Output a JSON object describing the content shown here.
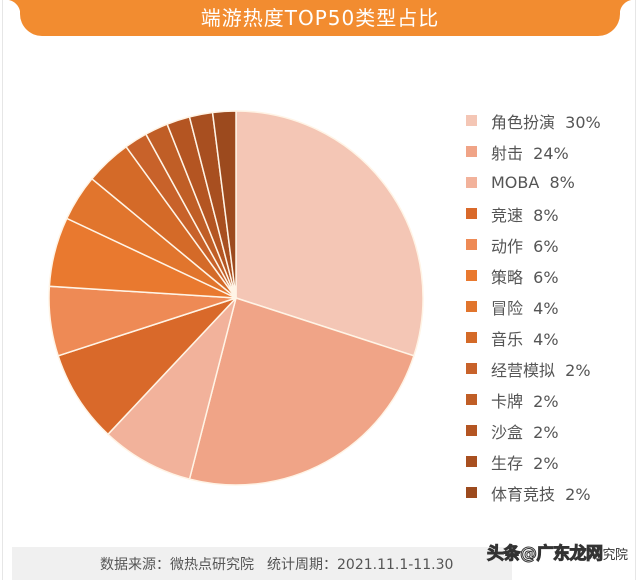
{
  "title": "端游热度TOP50类型占比",
  "footer": {
    "source": "数据来源：微热点研究院",
    "period": "统计周期：2021.11.1-11.30"
  },
  "watermark": {
    "text": "头条@广东龙网",
    "suffix": "究院"
  },
  "legend": [
    {
      "label": "角色扮演  30%",
      "color": "#f4c6b5"
    },
    {
      "label": "射击  24%",
      "color": "#f0a487"
    },
    {
      "label": "MOBA  8%",
      "color": "#f2b29b"
    },
    {
      "label": "竞速  8%",
      "color": "#d9692a"
    },
    {
      "label": "动作  6%",
      "color": "#ee8a55"
    },
    {
      "label": "策略  6%",
      "color": "#e9792f"
    },
    {
      "label": "冒险  4%",
      "color": "#e1752d"
    },
    {
      "label": "音乐  4%",
      "color": "#d46a28"
    },
    {
      "label": "经营模拟  2%",
      "color": "#c8622a"
    },
    {
      "label": "卡牌  2%",
      "color": "#c05e26"
    },
    {
      "label": "沙盒  2%",
      "color": "#b45522"
    },
    {
      "label": "生存  2%",
      "color": "#a84f20"
    },
    {
      "label": "体育竞技  2%",
      "color": "#9c4a1e"
    }
  ],
  "chart_data": {
    "type": "pie",
    "title": "端游热度TOP50类型占比",
    "categories": [
      "角色扮演",
      "射击",
      "MOBA",
      "竞速",
      "动作",
      "策略",
      "冒险",
      "音乐",
      "经营模拟",
      "卡牌",
      "沙盒",
      "生存",
      "体育竞技"
    ],
    "values": [
      30,
      24,
      8,
      8,
      6,
      6,
      4,
      4,
      2,
      2,
      2,
      2,
      2
    ],
    "unit": "%",
    "colors": [
      "#f4c6b5",
      "#f0a487",
      "#f2b29b",
      "#d9692a",
      "#ee8a55",
      "#e9792f",
      "#e1752d",
      "#d46a28",
      "#c8622a",
      "#c05e26",
      "#b45522",
      "#a84f20",
      "#9c4a1e"
    ],
    "start_angle": "12 o'clock",
    "direction": "clockwise",
    "legend_position": "right",
    "source": "数据来源：微热点研究院",
    "period": "统计周期：2021.11.1-11.30"
  }
}
